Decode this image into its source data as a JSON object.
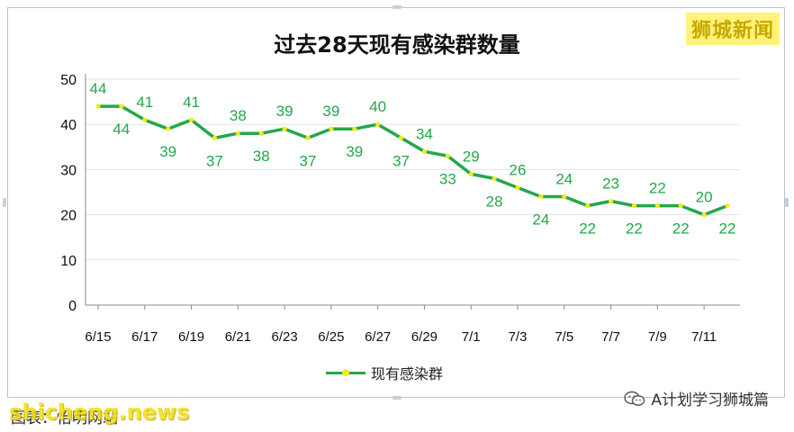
{
  "brand": "狮城新闻",
  "chart_data": {
    "type": "line",
    "title": "过去28天现有感染群数量",
    "xlabel": "",
    "ylabel": "",
    "ylim": [
      0,
      50
    ],
    "yticks": [
      0,
      10,
      20,
      30,
      40,
      50
    ],
    "grid": true,
    "legend_position": "bottom-center",
    "categories": [
      "6/15",
      "6/16",
      "6/17",
      "6/18",
      "6/19",
      "6/20",
      "6/21",
      "6/22",
      "6/23",
      "6/24",
      "6/25",
      "6/26",
      "6/27",
      "6/28",
      "6/29",
      "6/30",
      "7/1",
      "7/2",
      "7/3",
      "7/4",
      "7/5",
      "7/6",
      "7/7",
      "7/8",
      "7/9",
      "7/10",
      "7/11",
      "7/12"
    ],
    "xtick_labels": [
      "6/15",
      "6/17",
      "6/19",
      "6/21",
      "6/23",
      "6/25",
      "6/27",
      "6/29",
      "7/1",
      "7/3",
      "7/5",
      "7/7",
      "7/9",
      "7/11"
    ],
    "series": [
      {
        "name": "现有感染群",
        "color": "#22a84a",
        "marker_color": "#f7e81a",
        "values": [
          44,
          44,
          41,
          39,
          41,
          37,
          38,
          38,
          39,
          37,
          39,
          39,
          40,
          37,
          34,
          33,
          29,
          28,
          26,
          24,
          24,
          22,
          23,
          22,
          22,
          22,
          20,
          22
        ]
      }
    ]
  },
  "footer": {
    "caption": "图表：怡明网站",
    "site": "shicheng.news",
    "account": "A计划学习狮城篇"
  }
}
